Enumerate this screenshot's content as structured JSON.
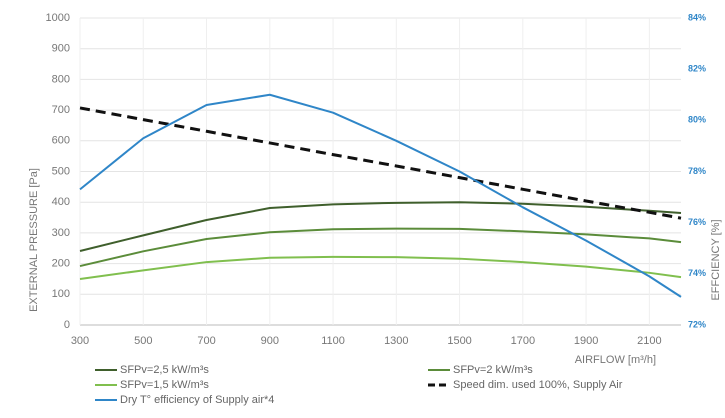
{
  "chart_data": {
    "type": "line",
    "x": [
      300,
      500,
      700,
      900,
      1100,
      1300,
      1500,
      1700,
      1900,
      2100,
      2200
    ],
    "xlim": [
      300,
      2200
    ],
    "xticks": [
      300,
      500,
      700,
      900,
      1100,
      1300,
      1500,
      1700,
      1900,
      2100
    ],
    "ylim": [
      0,
      1000
    ],
    "yticks": [
      0,
      100,
      200,
      300,
      400,
      500,
      600,
      700,
      800,
      900,
      1000
    ],
    "y2lim": [
      72,
      84
    ],
    "y2ticks": [
      {
        "value": 72,
        "label": "72%"
      },
      {
        "value": 74,
        "label": "74%"
      },
      {
        "value": 76,
        "label": "76%"
      },
      {
        "value": 78,
        "label": "78%"
      },
      {
        "value": 80,
        "label": "80%"
      },
      {
        "value": 82,
        "label": "82%"
      },
      {
        "value": 84,
        "label": "84%"
      }
    ],
    "xlabel": "AIRFLOW [m³/h]",
    "ylabel": "EXTERNAL PRESSURE [Pa]",
    "y2label": "EFFCIENCY [%]",
    "grid": true,
    "series": [
      {
        "name": "SFPv=2,5 kW/m³s",
        "color": "#3f5f2c",
        "values": [
          241,
          292,
          342,
          381,
          393,
          398,
          400,
          395,
          385,
          372,
          365
        ]
      },
      {
        "name": "SFPv=2 kW/m³s",
        "color": "#5b8c3a",
        "values": [
          192,
          240,
          280,
          302,
          312,
          314,
          313,
          305,
          295,
          282,
          270
        ]
      },
      {
        "name": "SFPv=1,5 kW/m³s",
        "color": "#80bf4e",
        "values": [
          150,
          178,
          205,
          219,
          222,
          221,
          216,
          205,
          190,
          170,
          156
        ]
      },
      {
        "name": "Speed dim. used 100%, Supply Air",
        "color": "#111111",
        "style": "dashed",
        "values": [
          707,
          669,
          631,
          593,
          555,
          518,
          480,
          442,
          404,
          367,
          348
        ]
      },
      {
        "name": "Dry T° efficiency of Supply air*4",
        "color": "#2f86c8",
        "axis": "y2",
        "values": [
          77.3,
          79.3,
          80.6,
          81.0,
          80.3,
          79.2,
          78.0,
          76.6,
          75.3,
          73.9,
          73.1
        ]
      }
    ]
  }
}
